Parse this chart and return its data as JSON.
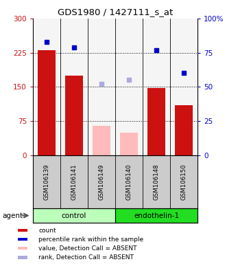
{
  "title": "GDS1980 / 1427111_s_at",
  "samples": [
    "GSM106139",
    "GSM106141",
    "GSM106149",
    "GSM106140",
    "GSM106148",
    "GSM106150"
  ],
  "groups": [
    {
      "name": "control",
      "indices": [
        0,
        1,
        2
      ],
      "color": "#bbffbb"
    },
    {
      "name": "endothelin-1",
      "indices": [
        3,
        4,
        5
      ],
      "color": "#22dd22"
    }
  ],
  "bar_values": [
    230,
    175,
    null,
    null,
    148,
    110
  ],
  "absent_bar_values": [
    null,
    null,
    65,
    50,
    null,
    null
  ],
  "blue_marker_values": [
    83,
    79,
    null,
    null,
    77,
    60
  ],
  "blue_absent_marker_values": [
    null,
    null,
    52,
    55,
    null,
    null
  ],
  "bar_color_present": "#cc1111",
  "bar_color_absent": "#ffbbbb",
  "blue_color_present": "#0000cc",
  "blue_color_absent": "#aaaadd",
  "ylim_left": [
    0,
    300
  ],
  "ylim_right": [
    0,
    100
  ],
  "yticks_left": [
    0,
    75,
    150,
    225,
    300
  ],
  "yticks_right": [
    0,
    25,
    50,
    75,
    100
  ],
  "ytick_labels_left": [
    "0",
    "75",
    "150",
    "225",
    "300"
  ],
  "ytick_labels_right": [
    "0",
    "25",
    "50",
    "75",
    "100%"
  ],
  "left_tick_color": "#cc1111",
  "right_tick_color": "#0000cc",
  "grid_lines_at": [
    75,
    150,
    225
  ],
  "sample_bg": "#cccccc",
  "legend_items": [
    {
      "color": "#cc1111",
      "label": "count"
    },
    {
      "color": "#0000cc",
      "label": "percentile rank within the sample"
    },
    {
      "color": "#ffbbbb",
      "label": "value, Detection Call = ABSENT"
    },
    {
      "color": "#aaaadd",
      "label": "rank, Detection Call = ABSENT"
    }
  ]
}
